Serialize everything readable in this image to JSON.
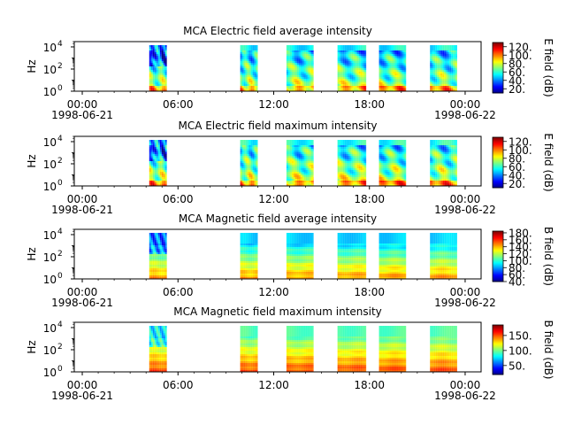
{
  "chart_data": [
    {
      "type": "heatmap",
      "title": "MCA  Electric field average intensity",
      "ylabel": "Hz",
      "colorbar_label": "E field (dB)",
      "y_scale": "log",
      "ylim": [
        1,
        30000
      ],
      "y_ticks": [
        {
          "label": "10",
          "exp": "0"
        },
        {
          "label": "10",
          "exp": "2"
        },
        {
          "label": "10",
          "exp": "4"
        }
      ],
      "x_ticks": [
        "00:00",
        "06:00",
        "12:00",
        "18:00",
        "00:00"
      ],
      "x_dates": [
        "1998-06-21",
        "1998-06-22"
      ],
      "x_range_hours": [
        -0.5,
        25
      ],
      "color_range": [
        10,
        130
      ],
      "colorbar_ticks": [
        "20.",
        "40.",
        "60.",
        "80.",
        "100.",
        "120."
      ],
      "colorbar_tick_values": [
        20,
        40,
        60,
        80,
        100,
        120
      ],
      "style": "electric",
      "baseline": 78,
      "top_db": 55,
      "segments": [
        {
          "start_hour": 4.2,
          "end_hour": 5.3
        },
        {
          "start_hour": 9.9,
          "end_hour": 11.0
        },
        {
          "start_hour": 12.8,
          "end_hour": 14.5
        },
        {
          "start_hour": 16.0,
          "end_hour": 17.8
        },
        {
          "start_hour": 18.6,
          "end_hour": 20.3
        },
        {
          "start_hour": 21.8,
          "end_hour": 23.5
        }
      ]
    },
    {
      "type": "heatmap",
      "title": "MCA  Electric field maximum intensity",
      "ylabel": "Hz",
      "colorbar_label": "E field (dB)",
      "y_scale": "log",
      "ylim": [
        1,
        30000
      ],
      "y_ticks": [
        {
          "label": "10",
          "exp": "0"
        },
        {
          "label": "10",
          "exp": "2"
        },
        {
          "label": "10",
          "exp": "4"
        }
      ],
      "x_ticks": [
        "00:00",
        "06:00",
        "12:00",
        "18:00",
        "00:00"
      ],
      "x_dates": [
        "1998-06-21",
        "1998-06-22"
      ],
      "x_range_hours": [
        -0.5,
        25
      ],
      "color_range": [
        10,
        130
      ],
      "colorbar_ticks": [
        "20.",
        "40.",
        "60.",
        "80.",
        "100.",
        "120."
      ],
      "colorbar_tick_values": [
        20,
        40,
        60,
        80,
        100,
        120
      ],
      "style": "electric",
      "baseline": 82,
      "top_db": 58,
      "segments": [
        {
          "start_hour": 4.2,
          "end_hour": 5.3
        },
        {
          "start_hour": 9.9,
          "end_hour": 11.0
        },
        {
          "start_hour": 12.8,
          "end_hour": 14.5
        },
        {
          "start_hour": 16.0,
          "end_hour": 17.8
        },
        {
          "start_hour": 18.6,
          "end_hour": 20.3
        },
        {
          "start_hour": 21.8,
          "end_hour": 23.5
        }
      ]
    },
    {
      "type": "heatmap",
      "title": "MCA  Magnetic field average intensity",
      "ylabel": "Hz",
      "colorbar_label": "B field (dB)",
      "y_scale": "log",
      "ylim": [
        1,
        30000
      ],
      "y_ticks": [
        {
          "label": "10",
          "exp": "0"
        },
        {
          "label": "10",
          "exp": "2"
        },
        {
          "label": "10",
          "exp": "4"
        }
      ],
      "x_ticks": [
        "00:00",
        "06:00",
        "12:00",
        "18:00",
        "00:00"
      ],
      "x_dates": [
        "1998-06-21",
        "1998-06-22"
      ],
      "x_range_hours": [
        -0.5,
        25
      ],
      "color_range": [
        40,
        185
      ],
      "colorbar_ticks": [
        "40.",
        "60.",
        "80.",
        "100.",
        "120.",
        "140.",
        "160.",
        "180."
      ],
      "colorbar_tick_values": [
        40,
        60,
        80,
        100,
        120,
        140,
        160,
        180
      ],
      "style": "magnetic",
      "baseline": 118,
      "top_db": 88,
      "segments": [
        {
          "start_hour": 4.2,
          "end_hour": 5.3
        },
        {
          "start_hour": 9.9,
          "end_hour": 11.0
        },
        {
          "start_hour": 12.8,
          "end_hour": 14.5
        },
        {
          "start_hour": 16.0,
          "end_hour": 17.8
        },
        {
          "start_hour": 18.6,
          "end_hour": 20.3
        },
        {
          "start_hour": 21.8,
          "end_hour": 23.5
        }
      ]
    },
    {
      "type": "heatmap",
      "title": "MCA  Magnetic field maximum intensity",
      "ylabel": "Hz",
      "colorbar_label": "B field (dB)",
      "y_scale": "log",
      "ylim": [
        1,
        30000
      ],
      "y_ticks": [
        {
          "label": "10",
          "exp": "0"
        },
        {
          "label": "10",
          "exp": "2"
        },
        {
          "label": "10",
          "exp": "4"
        }
      ],
      "x_ticks": [
        "00:00",
        "06:00",
        "12:00",
        "18:00",
        "00:00"
      ],
      "x_dates": [
        "1998-06-21",
        "1998-06-22"
      ],
      "x_range_hours": [
        -0.5,
        25
      ],
      "color_range": [
        20,
        185
      ],
      "colorbar_ticks": [
        "50.",
        "100.",
        "150."
      ],
      "colorbar_tick_values": [
        50,
        100,
        150
      ],
      "style": "magnetic",
      "baseline": 125,
      "top_db": 95,
      "segments": [
        {
          "start_hour": 4.2,
          "end_hour": 5.3
        },
        {
          "start_hour": 9.9,
          "end_hour": 11.0
        },
        {
          "start_hour": 12.8,
          "end_hour": 14.5
        },
        {
          "start_hour": 16.0,
          "end_hour": 17.8
        },
        {
          "start_hour": 18.6,
          "end_hour": 20.3
        },
        {
          "start_hour": 21.8,
          "end_hour": 23.5
        }
      ]
    }
  ]
}
